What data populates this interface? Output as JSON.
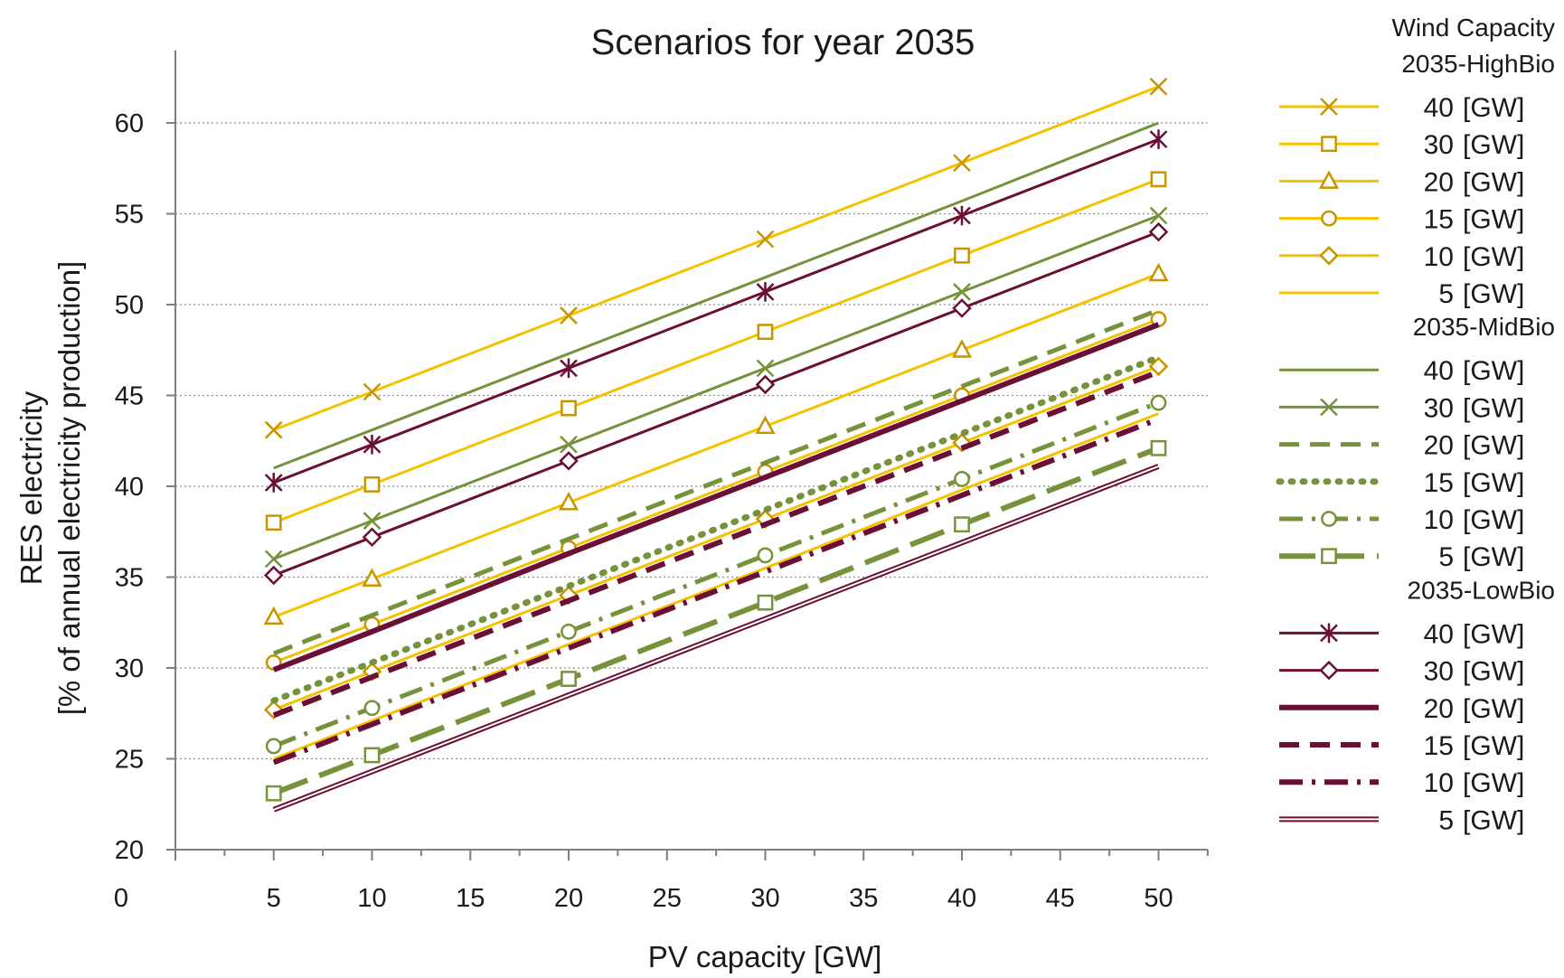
{
  "chart_data": {
    "type": "line",
    "title": "Scenarios for year 2035",
    "xlabel": "PV capacity [GW]",
    "ylabel_line1": "RES electricity",
    "ylabel_line2": "[% of annual electricity production]",
    "x_ticks": [
      "0",
      "5",
      "10",
      "15",
      "20",
      "25",
      "30",
      "35",
      "40",
      "45",
      "50"
    ],
    "y_ticks": [
      "20",
      "25",
      "30",
      "35",
      "40",
      "45",
      "50",
      "55",
      "60"
    ],
    "xlim": [
      0,
      52.5
    ],
    "ylim": [
      20,
      64
    ],
    "grid": "horizontal dotted",
    "legend_position": "right",
    "legend_title": "Wind Capacity",
    "x": [
      5,
      10,
      20,
      30,
      40,
      50
    ],
    "groups": [
      {
        "name": "2035-HighBio",
        "color": "#f5c200",
        "marker_color": "#c89400",
        "series": [
          {
            "name": "40",
            "unit": "[GW]",
            "style": "solid",
            "width": 3,
            "marker": "x",
            "values": [
              43.1,
              45.2,
              49.4,
              53.6,
              57.8,
              62.0
            ]
          },
          {
            "name": "30",
            "unit": "[GW]",
            "style": "solid",
            "width": 3,
            "marker": "square",
            "values": [
              38.0,
              40.1,
              44.3,
              48.5,
              52.7,
              56.9
            ]
          },
          {
            "name": "20",
            "unit": "[GW]",
            "style": "solid",
            "width": 3,
            "marker": "triangle",
            "values": [
              32.8,
              34.9,
              39.1,
              43.3,
              47.5,
              51.7
            ]
          },
          {
            "name": "15",
            "unit": "[GW]",
            "style": "solid",
            "width": 3,
            "marker": "circle",
            "values": [
              30.3,
              32.4,
              36.6,
              40.8,
              45.0,
              49.2
            ]
          },
          {
            "name": "10",
            "unit": "[GW]",
            "style": "solid",
            "width": 3,
            "marker": "diamond",
            "values": [
              27.7,
              29.8,
              34.0,
              38.2,
              42.4,
              46.6
            ]
          },
          {
            "name": "5",
            "unit": "[GW]",
            "style": "solid",
            "width": 3,
            "marker": "none",
            "values": [
              25.0,
              27.1,
              31.3,
              35.5,
              39.8,
              44.0
            ]
          }
        ]
      },
      {
        "name": "2035-MidBio",
        "color": "#76933c",
        "marker_color": "#76933c",
        "series": [
          {
            "name": "40",
            "unit": "[GW]",
            "style": "solid",
            "width": 3,
            "marker": "none",
            "values": [
              41.0,
              43.1,
              47.3,
              51.5,
              55.7,
              60.0
            ]
          },
          {
            "name": "30",
            "unit": "[GW]",
            "style": "solid",
            "width": 3,
            "marker": "x",
            "values": [
              36.0,
              38.1,
              42.3,
              46.5,
              50.7,
              54.9
            ]
          },
          {
            "name": "20",
            "unit": "[GW]",
            "style": "dash",
            "width": 5,
            "marker": "none",
            "values": [
              30.8,
              32.9,
              37.1,
              41.3,
              45.5,
              49.7
            ]
          },
          {
            "name": "15",
            "unit": "[GW]",
            "style": "dot",
            "width": 7,
            "marker": "none",
            "values": [
              28.2,
              30.3,
              34.5,
              38.7,
              42.9,
              47.1
            ]
          },
          {
            "name": "10",
            "unit": "[GW]",
            "style": "dashdot",
            "width": 5,
            "marker": "circle",
            "values": [
              25.7,
              27.8,
              32.0,
              36.2,
              40.4,
              44.6
            ]
          },
          {
            "name": "5",
            "unit": "[GW]",
            "style": "longdash",
            "width": 6,
            "marker": "square",
            "values": [
              23.1,
              25.2,
              29.4,
              33.6,
              37.9,
              42.1
            ]
          }
        ]
      },
      {
        "name": "2035-LowBio",
        "color": "#6b0f37",
        "marker_color": "#6b0f37",
        "series": [
          {
            "name": "40",
            "unit": "[GW]",
            "style": "solid",
            "width": 3,
            "marker": "star",
            "values": [
              40.2,
              42.3,
              46.5,
              50.7,
              54.9,
              59.1
            ]
          },
          {
            "name": "30",
            "unit": "[GW]",
            "style": "solid",
            "width": 3,
            "marker": "diamond",
            "values": [
              35.1,
              37.2,
              41.4,
              45.6,
              49.8,
              54.0
            ]
          },
          {
            "name": "20",
            "unit": "[GW]",
            "style": "solid",
            "width": 6,
            "marker": "none",
            "values": [
              29.9,
              32.0,
              36.3,
              40.5,
              44.7,
              48.9
            ]
          },
          {
            "name": "15",
            "unit": "[GW]",
            "style": "dash",
            "width": 6,
            "marker": "none",
            "values": [
              27.4,
              29.5,
              33.7,
              37.9,
              42.1,
              46.3
            ]
          },
          {
            "name": "10",
            "unit": "[GW]",
            "style": "dashdot",
            "width": 6,
            "marker": "none",
            "values": [
              24.8,
              26.9,
              31.1,
              35.3,
              39.5,
              43.7
            ]
          },
          {
            "name": "5",
            "unit": "[GW]",
            "style": "double",
            "width": 6,
            "marker": "none",
            "values": [
              22.2,
              24.3,
              28.5,
              32.7,
              36.9,
              41.1
            ]
          }
        ]
      }
    ]
  }
}
